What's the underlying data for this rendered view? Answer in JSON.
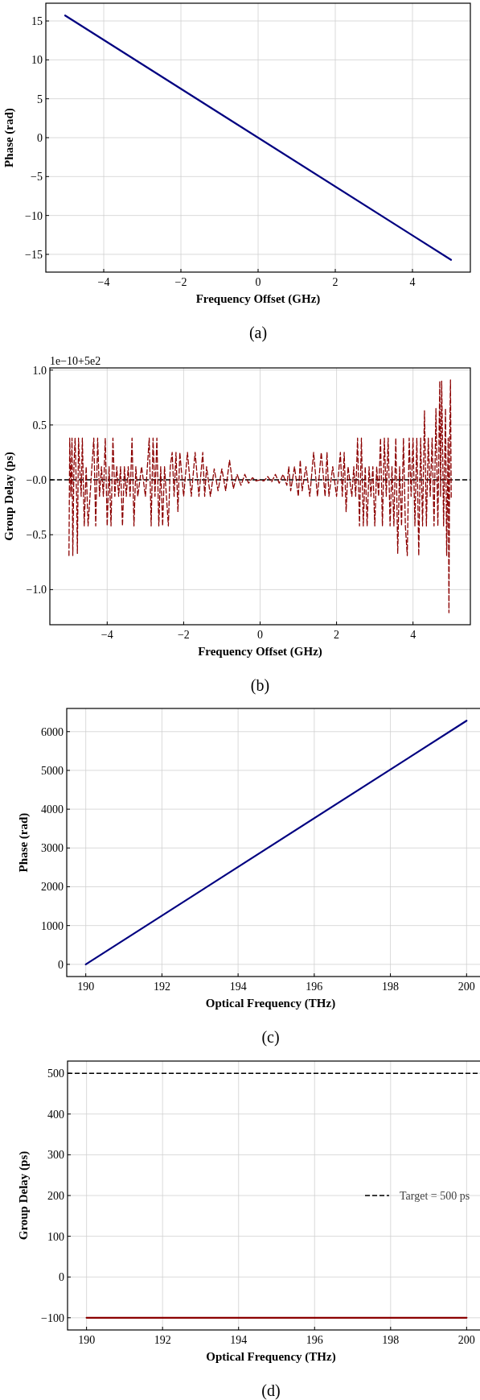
{
  "chart_data": [
    {
      "type": "line",
      "xlabel": "Frequency Offset (GHz)",
      "ylabel": "Phase (rad)",
      "annotations": [
        "(a)"
      ],
      "xlim": [
        -5.5,
        5.5
      ],
      "ylim": [
        -17.28,
        17.28
      ],
      "grid": true,
      "xticks": [
        -4,
        -2,
        0,
        2,
        4
      ],
      "yticks": [
        -15,
        -10,
        -5,
        0,
        5,
        10,
        15
      ],
      "series": [
        {
          "color": "#000080",
          "x": [
            -5,
            5
          ],
          "values": [
            15.7,
            -15.7
          ]
        }
      ]
    },
    {
      "type": "line",
      "xlabel": "Frequency Offset (GHz)",
      "ylabel": "Group Delay (ps)",
      "annotations": [
        "1e−10+5e2",
        "(b)"
      ],
      "xlim": [
        -5.5,
        5.5
      ],
      "ylim": [
        -1.32,
        1.02
      ],
      "grid": true,
      "xticks": [
        -4,
        -2,
        0,
        2,
        4
      ],
      "yticks": [
        {
          "value": -1,
          "label": "−1.0"
        },
        {
          "value": -0.5,
          "label": "−0.5"
        },
        {
          "value": 0,
          "label": "−0.0"
        },
        {
          "value": 0.5,
          "label": "0.5"
        },
        {
          "value": 1,
          "label": "1.0"
        }
      ],
      "ref_lines": [
        {
          "axis": "y",
          "value": 0,
          "color": "#000000",
          "line_style": "dashed"
        }
      ],
      "series": [
        {
          "color": "#8b0000",
          "line_style": "dashed",
          "x": [
            -5.0,
            -4.98,
            -4.95,
            -4.92,
            -4.9,
            -4.87,
            -4.84,
            -4.8,
            -4.78,
            -4.75,
            -4.72,
            -4.68,
            -4.65,
            -4.6,
            -4.55,
            -4.5,
            -4.45,
            -4.4,
            -4.35,
            -4.3,
            -4.25,
            -4.2,
            -4.15,
            -4.1,
            -4.05,
            -4.0,
            -3.95,
            -3.9,
            -3.85,
            -3.8,
            -3.75,
            -3.7,
            -3.65,
            -3.6,
            -3.55,
            -3.5,
            -3.45,
            -3.4,
            -3.35,
            -3.3,
            -3.25,
            -3.2,
            -3.1,
            -3.0,
            -2.9,
            -2.85,
            -2.8,
            -2.75,
            -2.7,
            -2.65,
            -2.6,
            -2.55,
            -2.5,
            -2.45,
            -2.4,
            -2.35,
            -2.3,
            -2.25,
            -2.2,
            -2.15,
            -2.1,
            -2.0,
            -1.9,
            -1.8,
            -1.7,
            -1.6,
            -1.5,
            -1.45,
            -1.4,
            -1.3,
            -1.2,
            -1.1,
            -1.0,
            -0.9,
            -0.8,
            -0.7,
            -0.6,
            -0.5,
            -0.4,
            -0.3,
            -0.2,
            -0.1,
            0,
            0.1,
            0.2,
            0.3,
            0.4,
            0.5,
            0.6,
            0.7,
            0.75,
            0.8,
            0.9,
            1.0,
            1.05,
            1.1,
            1.2,
            1.3,
            1.4,
            1.5,
            1.6,
            1.7,
            1.75,
            1.8,
            1.9,
            2.0,
            2.1,
            2.15,
            2.2,
            2.25,
            2.3,
            2.4,
            2.45,
            2.5,
            2.55,
            2.6,
            2.65,
            2.7,
            2.75,
            2.8,
            2.85,
            2.9,
            2.95,
            3.0,
            3.05,
            3.1,
            3.15,
            3.2,
            3.25,
            3.3,
            3.35,
            3.4,
            3.45,
            3.5,
            3.55,
            3.6,
            3.65,
            3.7,
            3.75,
            3.8,
            3.85,
            3.9,
            3.95,
            4.0,
            4.05,
            4.1,
            4.15,
            4.2,
            4.25,
            4.3,
            4.35,
            4.4,
            4.45,
            4.5,
            4.55,
            4.6,
            4.65,
            4.7,
            4.72,
            4.75,
            4.8,
            4.85,
            4.88,
            4.92,
            4.94,
            4.96,
            4.98,
            5.0
          ],
          "values": [
            -0.69,
            0.38,
            -0.15,
            0.38,
            -0.69,
            0.12,
            0.38,
            -0.15,
            -0.67,
            0.38,
            0.12,
            -0.15,
            0.38,
            -0.42,
            0.12,
            -0.42,
            -0.15,
            0.12,
            0.38,
            -0.42,
            0.38,
            -0.15,
            0.12,
            -0.15,
            0.38,
            -0.42,
            0.12,
            -0.42,
            0.38,
            -0.15,
            0.12,
            -0.15,
            0.12,
            -0.42,
            0.12,
            -0.15,
            0.12,
            -0.15,
            0.38,
            -0.42,
            0.12,
            -0.15,
            0.12,
            -0.15,
            0.38,
            -0.42,
            0.38,
            -0.15,
            0.38,
            -0.42,
            0.12,
            -0.42,
            0.12,
            -0.15,
            -0.42,
            0.12,
            0.25,
            -0.15,
            0.25,
            -0.29,
            0.25,
            -0.15,
            0.25,
            -0.15,
            0.25,
            -0.15,
            0.25,
            -0.15,
            0.12,
            -0.15,
            0.1,
            -0.1,
            0.1,
            -0.1,
            0.18,
            -0.08,
            0.05,
            -0.05,
            0.05,
            -0.03,
            0.02,
            -0.01,
            0,
            -0.01,
            0.03,
            -0.02,
            0.05,
            -0.03,
            0.05,
            -0.05,
            0.12,
            -0.1,
            0.12,
            -0.15,
            0.18,
            -0.1,
            0.12,
            -0.15,
            0.25,
            -0.15,
            0.25,
            -0.15,
            0.25,
            -0.15,
            0.12,
            -0.15,
            0.25,
            -0.15,
            0.25,
            -0.29,
            0.12,
            -0.15,
            0.12,
            -0.15,
            0.38,
            -0.42,
            0.38,
            -0.42,
            0.12,
            -0.42,
            0.12,
            -0.15,
            0.12,
            -0.42,
            0.12,
            -0.15,
            0.38,
            -0.42,
            0.38,
            -0.15,
            0.38,
            -0.42,
            0.12,
            -0.42,
            0.38,
            -0.67,
            0.12,
            -0.42,
            0.38,
            -0.42,
            -0.69,
            0.38,
            -0.15,
            0.38,
            -0.42,
            0.38,
            -0.69,
            0.38,
            -0.42,
            0.63,
            -0.42,
            0.38,
            -0.15,
            0.38,
            -0.42,
            0.65,
            -0.42,
            0.9,
            -0.15,
            0.9,
            -0.42,
            0.65,
            -0.69,
            0.38,
            -1.21,
            0.38,
            0.91,
            -0.17
          ]
        }
      ]
    },
    {
      "type": "line",
      "xlabel": "Optical Frequency (THz)",
      "ylabel": "Phase (rad)",
      "annotations": [
        "(c)"
      ],
      "xlim": [
        189.5,
        200.5
      ],
      "ylim": [
        -314,
        6597
      ],
      "grid": true,
      "xticks": [
        190,
        192,
        194,
        196,
        198,
        200
      ],
      "yticks": [
        0,
        1000,
        2000,
        3000,
        4000,
        5000,
        6000
      ],
      "series": [
        {
          "color": "#000080",
          "x": [
            190,
            200
          ],
          "values": [
            0,
            6280
          ]
        }
      ]
    },
    {
      "type": "line",
      "xlabel": "Optical Frequency (THz)",
      "ylabel": "Group Delay (ps)",
      "annotations": [
        "(d)"
      ],
      "xlim": [
        189.5,
        200.5
      ],
      "ylim": [
        -130,
        530
      ],
      "grid": true,
      "legend": "right",
      "xticks": [
        190,
        192,
        194,
        196,
        198,
        200
      ],
      "yticks": [
        -100,
        0,
        100,
        200,
        300,
        400,
        500
      ],
      "ref_lines": [
        {
          "axis": "y",
          "value": 500,
          "color": "#000000",
          "line_style": "dashed",
          "label": "Target = 500 ps"
        }
      ],
      "series": [
        {
          "color": "#8b0000",
          "x": [
            190,
            200
          ],
          "values": [
            -100,
            -100
          ]
        }
      ]
    }
  ]
}
